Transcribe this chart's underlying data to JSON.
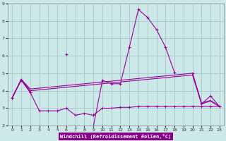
{
  "bg_color": "#cce8e8",
  "grid_color": "#aacccc",
  "line_color": "#990099",
  "xlabel": "Windchill (Refroidissement éolien,°C)",
  "xlim": [
    -0.5,
    23.5
  ],
  "ylim": [
    2,
    9
  ],
  "xticks": [
    0,
    1,
    2,
    3,
    4,
    5,
    6,
    7,
    8,
    9,
    10,
    11,
    12,
    13,
    14,
    15,
    16,
    17,
    18,
    19,
    20,
    21,
    22,
    23
  ],
  "yticks": [
    2,
    3,
    4,
    5,
    6,
    7,
    8,
    9
  ],
  "zigzag": {
    "x": [
      0,
      1,
      2,
      3,
      4,
      5,
      6,
      7,
      8,
      9,
      10,
      11,
      12,
      13,
      14,
      15,
      16,
      17,
      18,
      19,
      20,
      21,
      22,
      23
    ],
    "y": [
      3.6,
      4.6,
      3.9,
      null,
      null,
      null,
      6.1,
      null,
      null,
      1.95,
      4.6,
      4.4,
      4.4,
      6.5,
      8.65,
      8.2,
      7.5,
      6.5,
      5.05,
      null,
      5.0,
      3.25,
      3.7,
      3.1
    ]
  },
  "smooth_low": {
    "x": [
      0,
      1,
      2,
      3,
      4,
      5,
      6,
      7,
      8,
      9,
      10,
      11,
      12,
      13,
      14,
      15,
      16,
      17,
      18,
      19,
      20,
      21,
      22,
      23
    ],
    "y": [
      3.6,
      4.65,
      3.9,
      2.85,
      2.85,
      2.85,
      3.0,
      2.6,
      2.7,
      2.6,
      3.0,
      3.0,
      3.05,
      3.05,
      3.1,
      3.1,
      3.1,
      3.1,
      3.1,
      3.1,
      3.1,
      3.1,
      3.1,
      3.1
    ]
  },
  "regress1": {
    "x": [
      0,
      1,
      2,
      3,
      4,
      5,
      6,
      7,
      8,
      9,
      10,
      11,
      12,
      13,
      14,
      15,
      16,
      17,
      18,
      19,
      20,
      21,
      22,
      23
    ],
    "y": [
      3.6,
      4.65,
      4.0,
      4.05,
      4.1,
      4.15,
      4.2,
      4.25,
      4.3,
      4.35,
      4.4,
      4.45,
      4.5,
      4.55,
      4.6,
      4.65,
      4.7,
      4.75,
      4.8,
      4.85,
      4.9,
      3.25,
      3.4,
      3.1
    ]
  },
  "regress2": {
    "x": [
      0,
      1,
      2,
      3,
      4,
      5,
      6,
      7,
      8,
      9,
      10,
      11,
      12,
      13,
      14,
      15,
      16,
      17,
      18,
      19,
      20,
      21,
      22,
      23
    ],
    "y": [
      3.6,
      4.65,
      4.1,
      4.15,
      4.2,
      4.25,
      4.3,
      4.35,
      4.4,
      4.45,
      4.5,
      4.55,
      4.6,
      4.65,
      4.7,
      4.75,
      4.8,
      4.85,
      4.9,
      4.95,
      5.0,
      3.3,
      3.45,
      3.1
    ]
  }
}
